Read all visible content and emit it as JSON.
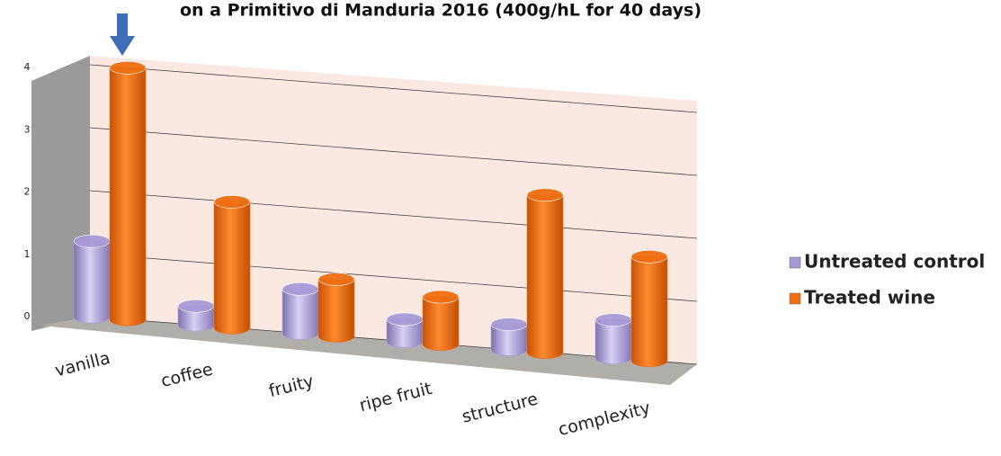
{
  "chart_data": {
    "type": "bar3d",
    "title": "on a Primitivo di Manduria 2016 (400g/hL for 40 days)",
    "categories": [
      "vanilla",
      "coffee",
      "fruity",
      "ripe fruit",
      "structure",
      "complexity"
    ],
    "series": [
      {
        "name": "Untreated control",
        "color": "#a89ad6",
        "values": [
          1.2,
          0.3,
          0.7,
          0.35,
          0.4,
          0.6
        ]
      },
      {
        "name": "Treated wine",
        "color": "#ee6f12",
        "values": [
          4,
          2,
          0.9,
          0.75,
          2.5,
          1.65
        ]
      }
    ],
    "ylim": [
      0,
      4
    ],
    "yticks": [
      0,
      1,
      2,
      3,
      4
    ],
    "grid": true
  }
}
